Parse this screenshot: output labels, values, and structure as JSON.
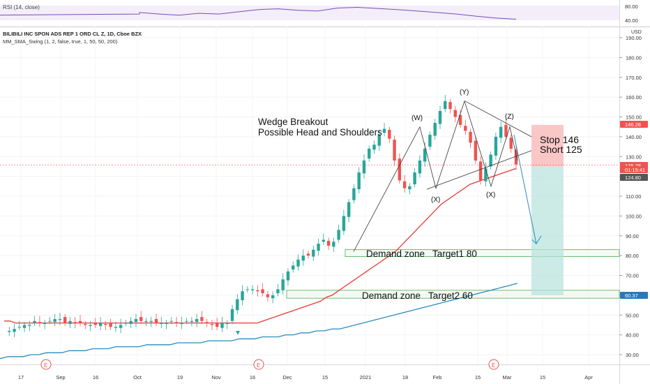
{
  "rsi_panel": {
    "label": "RSI (14, close)",
    "ticks": [
      "80.00",
      "40.00"
    ],
    "ylim": [
      30,
      90
    ]
  },
  "header": {
    "symbol_line": "BILIBILI INC SPON ADS REP 1 ORD CL Z, 1D, Cboe BZX",
    "indicator_line": "MM_SMA_Swing (1, 2, false, true, 1, 50, 50, 200)",
    "currency": "USD"
  },
  "annotations": {
    "wedge_title": "Wedge Breakout",
    "wedge_subtitle": "Possible Head and Shoulders",
    "stop_label": "Stop 146",
    "short_label": "Short 125",
    "demand1_label": "Demand zone   Target1 80",
    "demand2_label": "Demand zone   Target2 60",
    "wave_w": "(W)",
    "wave_y": "(Y)",
    "wave_z": "(Z)",
    "wave_x1": "(X)",
    "wave_x2": "(X)",
    "earnings_marker": "E"
  },
  "price_axis": {
    "ticks": [
      "190.00",
      "180.00",
      "170.00",
      "160.00",
      "150.00",
      "140.00",
      "130.00",
      "120.00",
      "110.00",
      "100.00",
      "90.00",
      "80.00",
      "70.00",
      "60.00",
      "50.00",
      "40.00",
      "30.00"
    ],
    "badges": [
      {
        "text": "146.28",
        "color": "#ef5350"
      },
      {
        "text": "125.78",
        "color": "#ef5350"
      },
      {
        "text": "01:15:41",
        "color": "#ef5350"
      },
      {
        "text": "124.80",
        "color": "#555555"
      },
      {
        "text": "60.37",
        "color": "#2a78b8"
      }
    ]
  },
  "time_axis": {
    "ticks": [
      "17",
      "Sep",
      "16",
      "Oct",
      "19",
      "Nov",
      "16",
      "Dec",
      "15",
      "2021",
      "18",
      "Feb",
      "15",
      "Mar",
      "15",
      "Apr"
    ]
  },
  "chart_data": {
    "type": "candlestick",
    "ylim": [
      25,
      195
    ],
    "y_scale": "linear",
    "price_series": [
      42,
      42,
      43,
      44,
      45,
      45,
      47,
      46,
      46,
      47,
      48,
      48,
      46,
      47,
      46,
      46,
      45,
      45,
      45,
      46,
      45,
      44,
      44,
      45,
      46,
      47,
      48,
      47,
      47,
      47,
      46,
      46,
      46,
      47,
      46,
      46,
      47,
      47,
      48,
      47,
      46,
      45,
      44,
      46,
      46,
      53,
      58,
      62,
      63,
      63,
      62,
      61,
      59,
      60,
      63,
      68,
      72,
      75,
      78,
      80,
      80,
      83,
      86,
      88,
      85,
      87,
      93,
      100,
      107,
      114,
      122,
      128,
      134,
      136,
      141,
      144,
      139,
      128,
      118,
      114,
      115,
      122,
      128,
      134,
      141,
      147,
      153,
      158,
      154,
      150,
      146,
      143,
      137,
      128,
      118,
      124,
      131,
      140,
      145,
      140,
      134,
      126
    ],
    "sma50": [
      47,
      47,
      46,
      46,
      46,
      46,
      46,
      46,
      46,
      46,
      46,
      46,
      46,
      46,
      46,
      46,
      46,
      46,
      46,
      46,
      46,
      46,
      46,
      46,
      46,
      46,
      46,
      46,
      46,
      46,
      46,
      46,
      46,
      46,
      46,
      46,
      46,
      46,
      46,
      46,
      46,
      46,
      46,
      46,
      46,
      47,
      48,
      49,
      50,
      51,
      52,
      53,
      54,
      55,
      56,
      57,
      59,
      60,
      62,
      64,
      66,
      68,
      70,
      72,
      74,
      76,
      78,
      80,
      82,
      85,
      88,
      91,
      94,
      97,
      100,
      103,
      106,
      108,
      110,
      112,
      114,
      116,
      117,
      118,
      119,
      120,
      121,
      122,
      123,
      124
    ],
    "sma200": [
      28,
      29,
      29,
      29,
      30,
      30,
      31,
      31,
      31,
      32,
      32,
      32,
      33,
      33,
      33,
      34,
      34,
      34,
      34,
      35,
      35,
      35,
      35,
      36,
      36,
      36,
      36,
      37,
      37,
      37,
      37,
      38,
      38,
      38,
      39,
      39,
      39,
      40,
      40,
      41,
      41,
      42,
      42,
      43,
      43,
      44,
      45,
      46,
      47,
      48,
      49,
      50,
      51,
      52,
      53,
      54,
      55,
      56,
      57,
      58,
      59,
      60,
      61,
      62,
      63,
      64,
      65,
      66
    ],
    "rsi": [
      62,
      58,
      55,
      60,
      58,
      64,
      70,
      72,
      68,
      66,
      74,
      76,
      73,
      70,
      66,
      62,
      58,
      52,
      47,
      44
    ]
  },
  "trade_box": {
    "stop": 146,
    "entry": 125,
    "target": 60
  },
  "demand_zones": [
    {
      "low": 79.5,
      "high": 83
    },
    {
      "low": 58.5,
      "high": 62.5
    }
  ]
}
